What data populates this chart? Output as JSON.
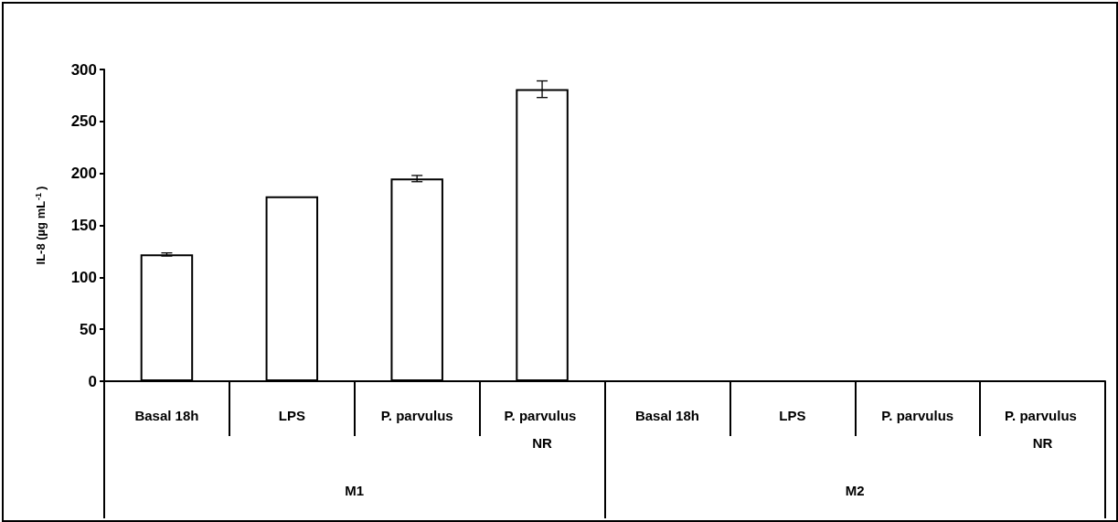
{
  "chart_data": {
    "type": "bar",
    "ylabel": "IL-8 (µg mL$^{-1}$)",
    "categories": [
      "Basal 18h",
      "LPS",
      "P. parvulus",
      "P. parvulus NR",
      "Basal 18h",
      "LPS",
      "P. parvulus",
      "P. parvulus NR"
    ],
    "series": [
      {
        "color": "#ffffff",
        "values": [
          122,
          178,
          195,
          281,
          null,
          null,
          null,
          null
        ],
        "errors": [
          1.5,
          null,
          3,
          8,
          null,
          null,
          null,
          null
        ]
      }
    ],
    "annotations": [
      "M1",
      "M2"
    ],
    "ylim": [
      0,
      300
    ],
    "yticks": [
      0,
      50,
      100,
      150,
      200,
      250,
      300
    ],
    "grid": false
  }
}
